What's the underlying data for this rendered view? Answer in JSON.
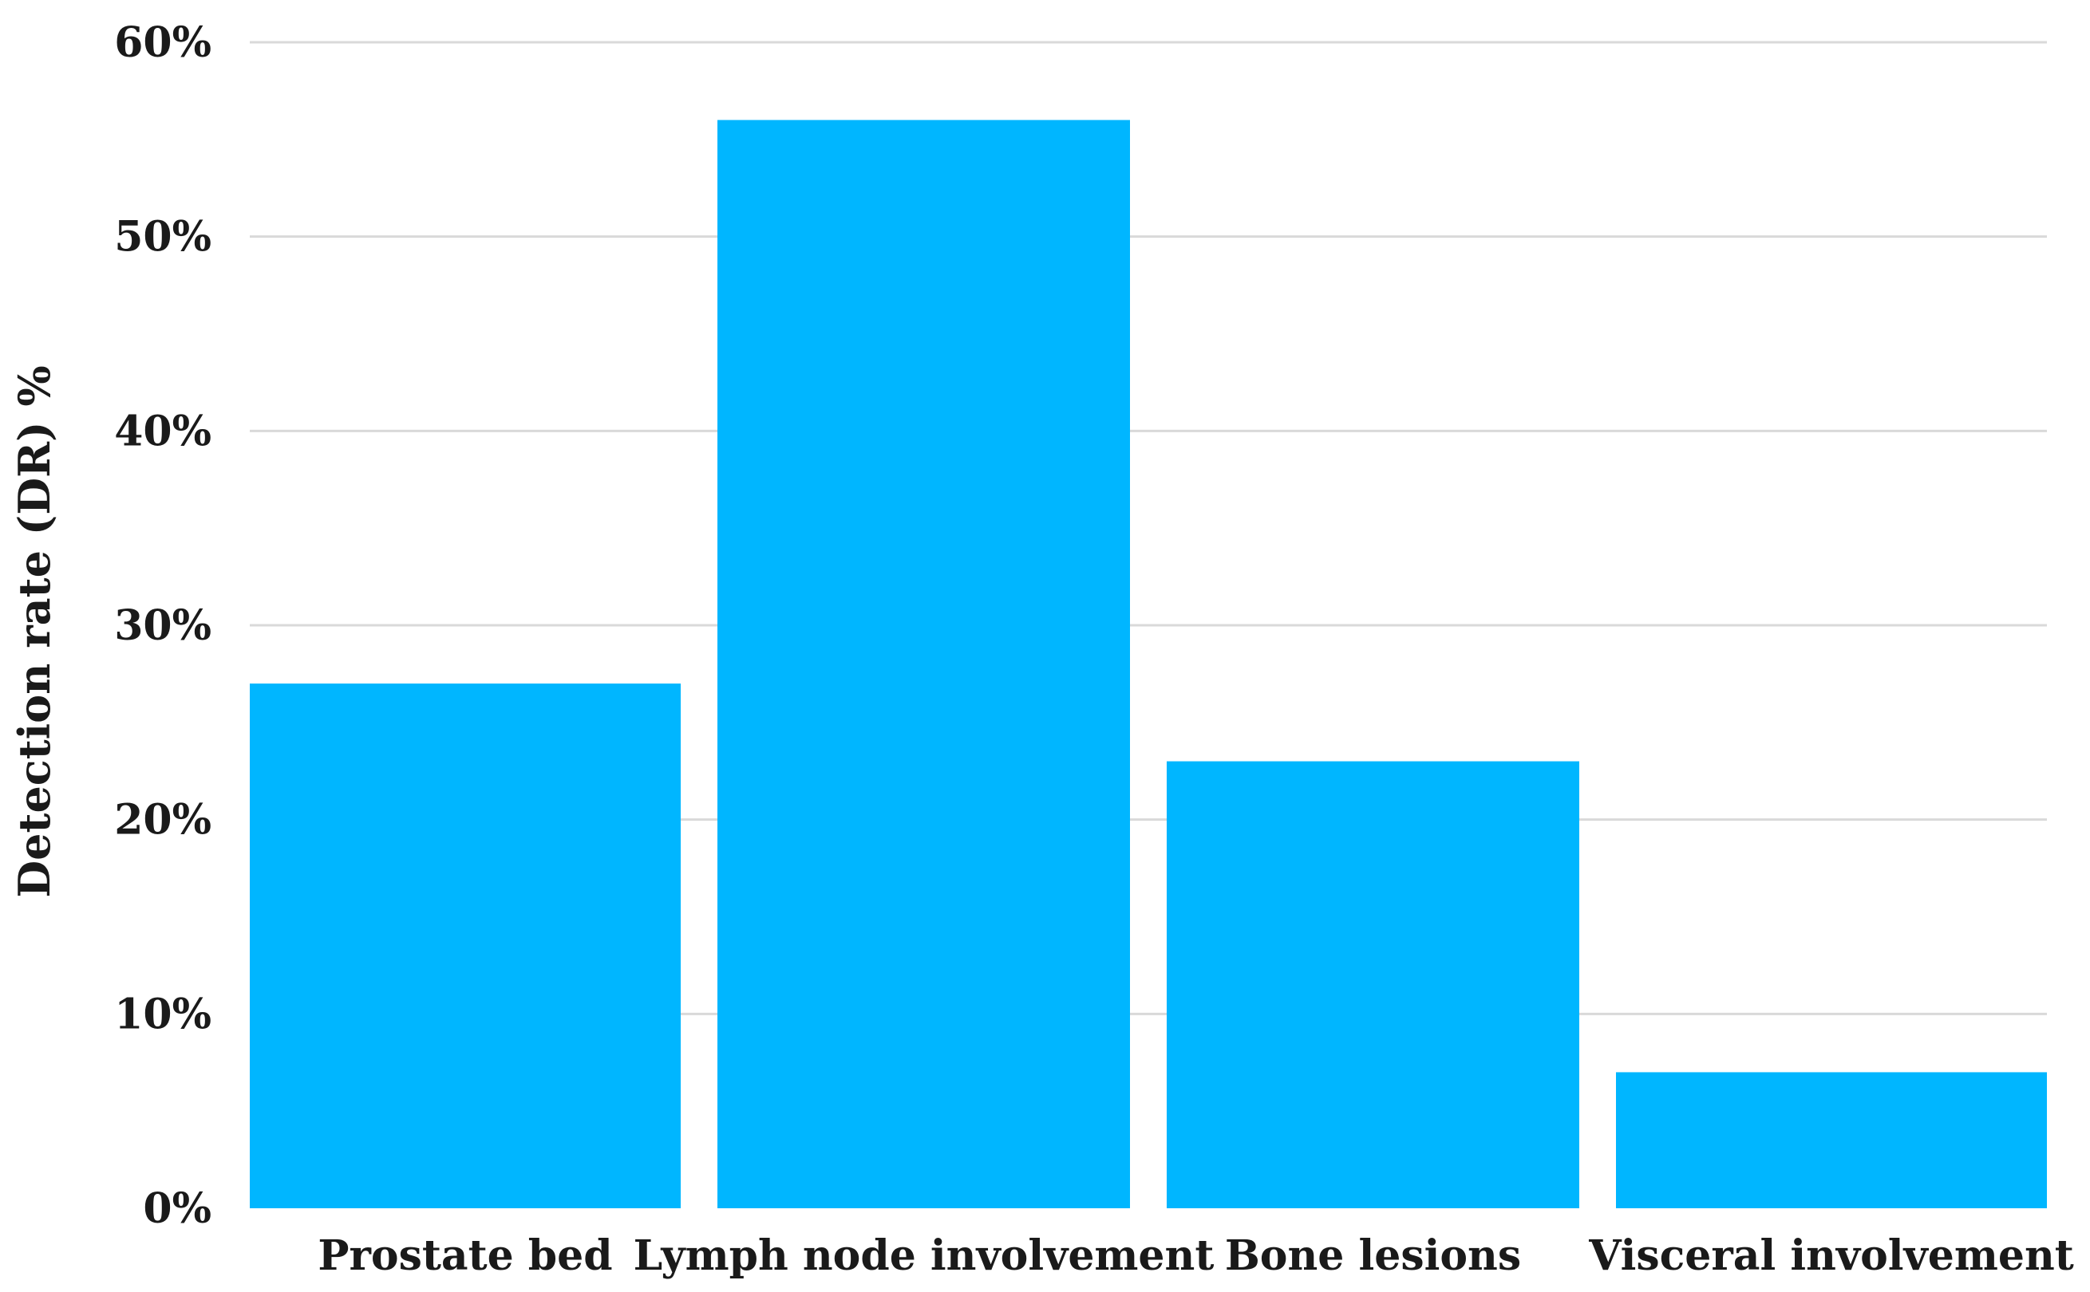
{
  "chart_data": {
    "type": "bar",
    "title": "",
    "xlabel": "",
    "ylabel": "Detection rate (DR) %",
    "categories": [
      "Prostate bed",
      "Lymph node involvement",
      "Bone lesions",
      "Visceral involvement"
    ],
    "values": [
      27,
      56,
      23,
      7
    ],
    "ylim": [
      0,
      60
    ],
    "yticks": [
      0,
      10,
      20,
      30,
      40,
      50,
      60
    ],
    "ytick_labels": [
      "0%",
      "10%",
      "20%",
      "30%",
      "40%",
      "50%",
      "60%"
    ],
    "grid": true,
    "legend": "none",
    "colors": {
      "bar": "#00B6FF",
      "grid": "#d9d9d9",
      "text": "#1a1a1a"
    }
  }
}
